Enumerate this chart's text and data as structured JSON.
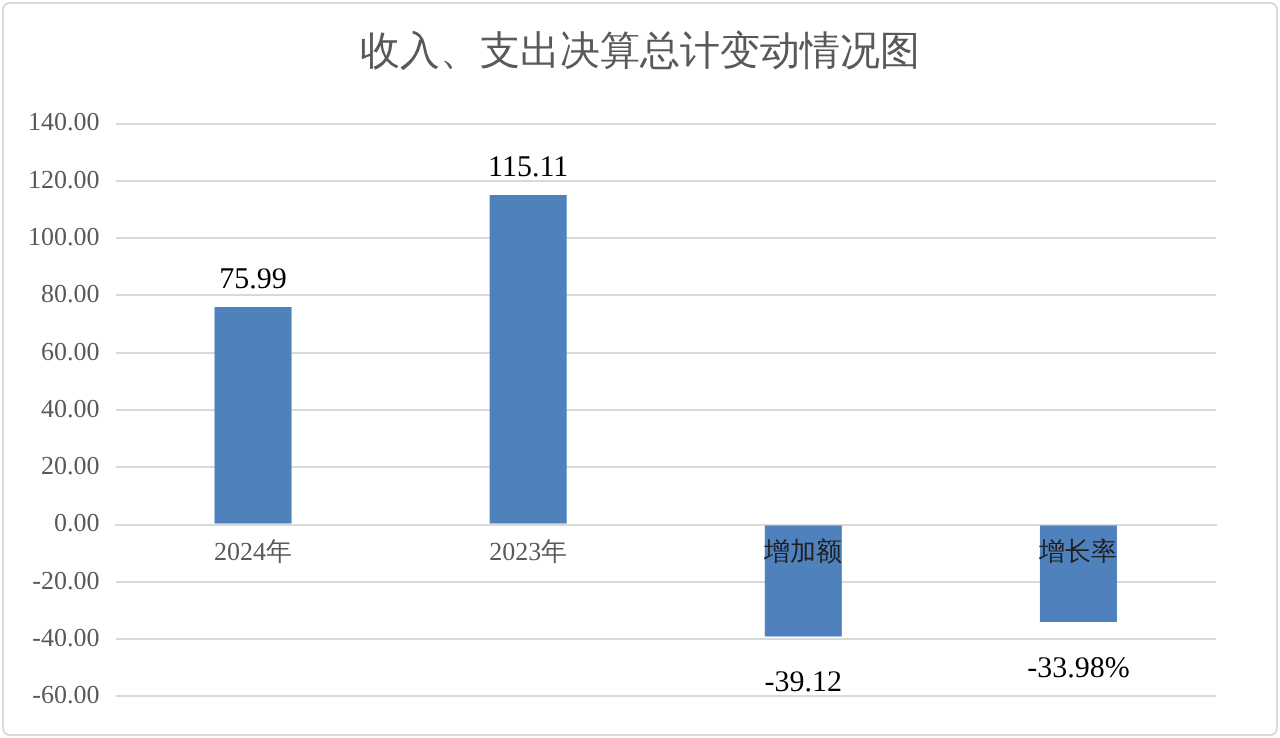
{
  "chart_data": {
    "type": "bar",
    "title": "收入、支出决算总计变动情况图",
    "categories": [
      "2024年",
      "2023年",
      "增加额",
      "增长率"
    ],
    "values": [
      75.99,
      115.11,
      -39.12,
      -33.98
    ],
    "value_labels": [
      "75.99",
      "115.11",
      "-39.12",
      "-33.98%"
    ],
    "color": "#4f81bd",
    "ylim": [
      -60,
      140
    ],
    "yticks": [
      {
        "value": -60,
        "label": "-60.00"
      },
      {
        "value": -40,
        "label": "-40.00"
      },
      {
        "value": -20,
        "label": "-20.00"
      },
      {
        "value": 0,
        "label": "0.00"
      },
      {
        "value": 20,
        "label": "20.00"
      },
      {
        "value": 40,
        "label": "40.00"
      },
      {
        "value": 60,
        "label": "60.00"
      },
      {
        "value": 80,
        "label": "80.00"
      },
      {
        "value": 100,
        "label": "100.00"
      },
      {
        "value": 120,
        "label": "120.00"
      },
      {
        "value": 140,
        "label": "140.00"
      }
    ],
    "grid": true
  }
}
